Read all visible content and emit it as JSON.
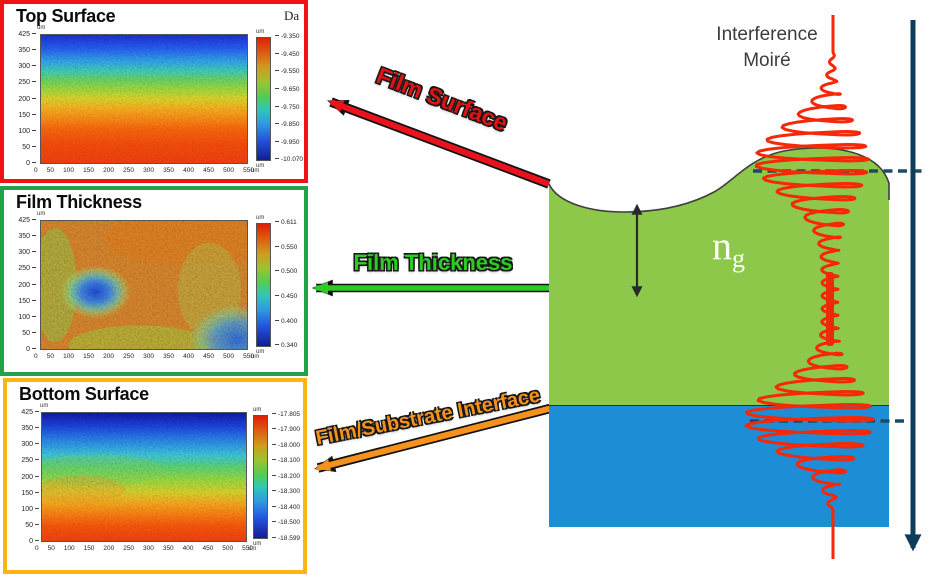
{
  "figure": {
    "panels": [
      {
        "title": "Top Surface",
        "border_color": "#EE1414",
        "unit": "um",
        "corner_fragment": "Da",
        "y_ticks": [
          "425",
          "350",
          "300",
          "250",
          "200",
          "150",
          "100",
          "50",
          "0"
        ],
        "x_ticks": [
          "0",
          "50",
          "100",
          "150",
          "200",
          "250",
          "300",
          "350",
          "400",
          "450",
          "500",
          "550"
        ],
        "colorbar_ticks": [
          "-9.350",
          "-9.450",
          "-9.550",
          "-9.650",
          "-9.750",
          "-9.850",
          "-9.950",
          "-10.070"
        ]
      },
      {
        "title": "Film Thickness",
        "border_color": "#21A24B",
        "unit": "um",
        "y_ticks": [
          "425",
          "350",
          "300",
          "250",
          "200",
          "150",
          "100",
          "50",
          "0"
        ],
        "x_ticks": [
          "0",
          "50",
          "100",
          "150",
          "200",
          "250",
          "300",
          "350",
          "400",
          "450",
          "500",
          "550"
        ],
        "colorbar_ticks": [
          "0.611",
          "0.550",
          "0.500",
          "0.450",
          "0.400",
          "0.340"
        ]
      },
      {
        "title": "Bottom Surface",
        "border_color": "#FDB515",
        "unit": "um",
        "y_ticks": [
          "425",
          "350",
          "300",
          "250",
          "200",
          "150",
          "100",
          "50",
          "0"
        ],
        "x_ticks": [
          "0",
          "50",
          "100",
          "150",
          "200",
          "250",
          "300",
          "350",
          "400",
          "450",
          "500",
          "550"
        ],
        "colorbar_ticks": [
          "-17.805",
          "-17.900",
          "-18.000",
          "-18.100",
          "-18.200",
          "-18.300",
          "-18.400",
          "-18.500",
          "-18.599"
        ]
      }
    ],
    "callouts": [
      {
        "label": "Film Surface",
        "color": "#E21212"
      },
      {
        "label": "Film Thickness",
        "color": "#2BCB23"
      },
      {
        "label": "Film/Substrate Interface",
        "color": "#F5921E"
      }
    ],
    "diagram": {
      "interference_line1": "Interference",
      "interference_line2": "Moiré",
      "refractive_index_base": "n",
      "refractive_index_sub": "g",
      "film_color": "#8DC84B",
      "substrate_color": "#1D8ED6",
      "trace_color": "#F62808",
      "depth_axis_color": "#0E3D5C"
    }
  }
}
